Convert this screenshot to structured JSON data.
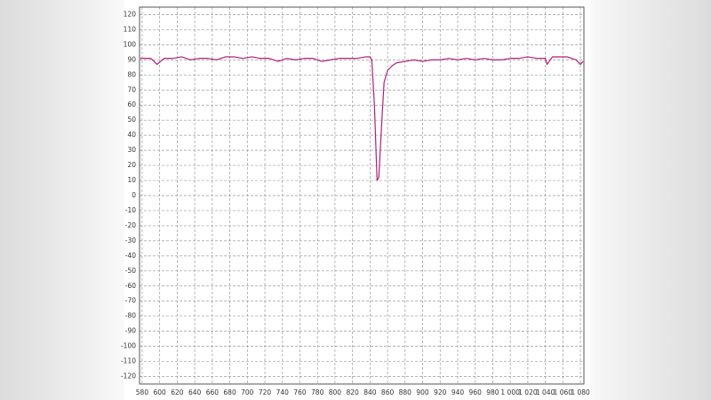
{
  "chart_data": {
    "type": "line",
    "x": [
      578,
      590,
      597,
      605,
      615,
      625,
      635,
      645,
      655,
      665,
      675,
      685,
      695,
      705,
      715,
      725,
      735,
      745,
      755,
      765,
      775,
      785,
      795,
      805,
      815,
      825,
      835,
      840,
      842,
      845,
      848,
      850,
      853,
      856,
      860,
      865,
      870,
      880,
      890,
      900,
      910,
      920,
      930,
      940,
      950,
      960,
      970,
      980,
      990,
      1000,
      1010,
      1020,
      1030,
      1040,
      1042,
      1048,
      1055,
      1065,
      1075,
      1080,
      1083
    ],
    "values": [
      91,
      91,
      87,
      91,
      91,
      92,
      90,
      91,
      91,
      90,
      92,
      92,
      91,
      92,
      91,
      91,
      89,
      91,
      90,
      91,
      91,
      89,
      90,
      91,
      91,
      91,
      92,
      92,
      90,
      60,
      10,
      12,
      45,
      75,
      83,
      86,
      88,
      89,
      90,
      89,
      90,
      90,
      91,
      90,
      91,
      90,
      91,
      90,
      90,
      91,
      91,
      92,
      91,
      91,
      87,
      92,
      92,
      92,
      90,
      87,
      89
    ],
    "color": "#b0207a",
    "xlim": [
      577,
      1084
    ],
    "ylim": [
      -125,
      125
    ],
    "xticks": [
      580,
      600,
      620,
      640,
      660,
      680,
      700,
      720,
      740,
      760,
      780,
      800,
      820,
      840,
      860,
      880,
      900,
      920,
      940,
      960,
      980,
      {
        "value": 1000,
        "label": "1 000"
      },
      {
        "value": 1020,
        "label": "1 020"
      },
      {
        "value": 1040,
        "label": "1 040"
      },
      {
        "value": 1060,
        "label": "1 060"
      },
      {
        "value": 1080,
        "label": "1 080"
      }
    ],
    "yticks": [
      120,
      110,
      100,
      90,
      80,
      70,
      60,
      50,
      40,
      30,
      20,
      10,
      0,
      -10,
      -20,
      -30,
      -40,
      -50,
      -60,
      -70,
      -80,
      -90,
      -100,
      -110,
      -120
    ],
    "grid": true
  }
}
